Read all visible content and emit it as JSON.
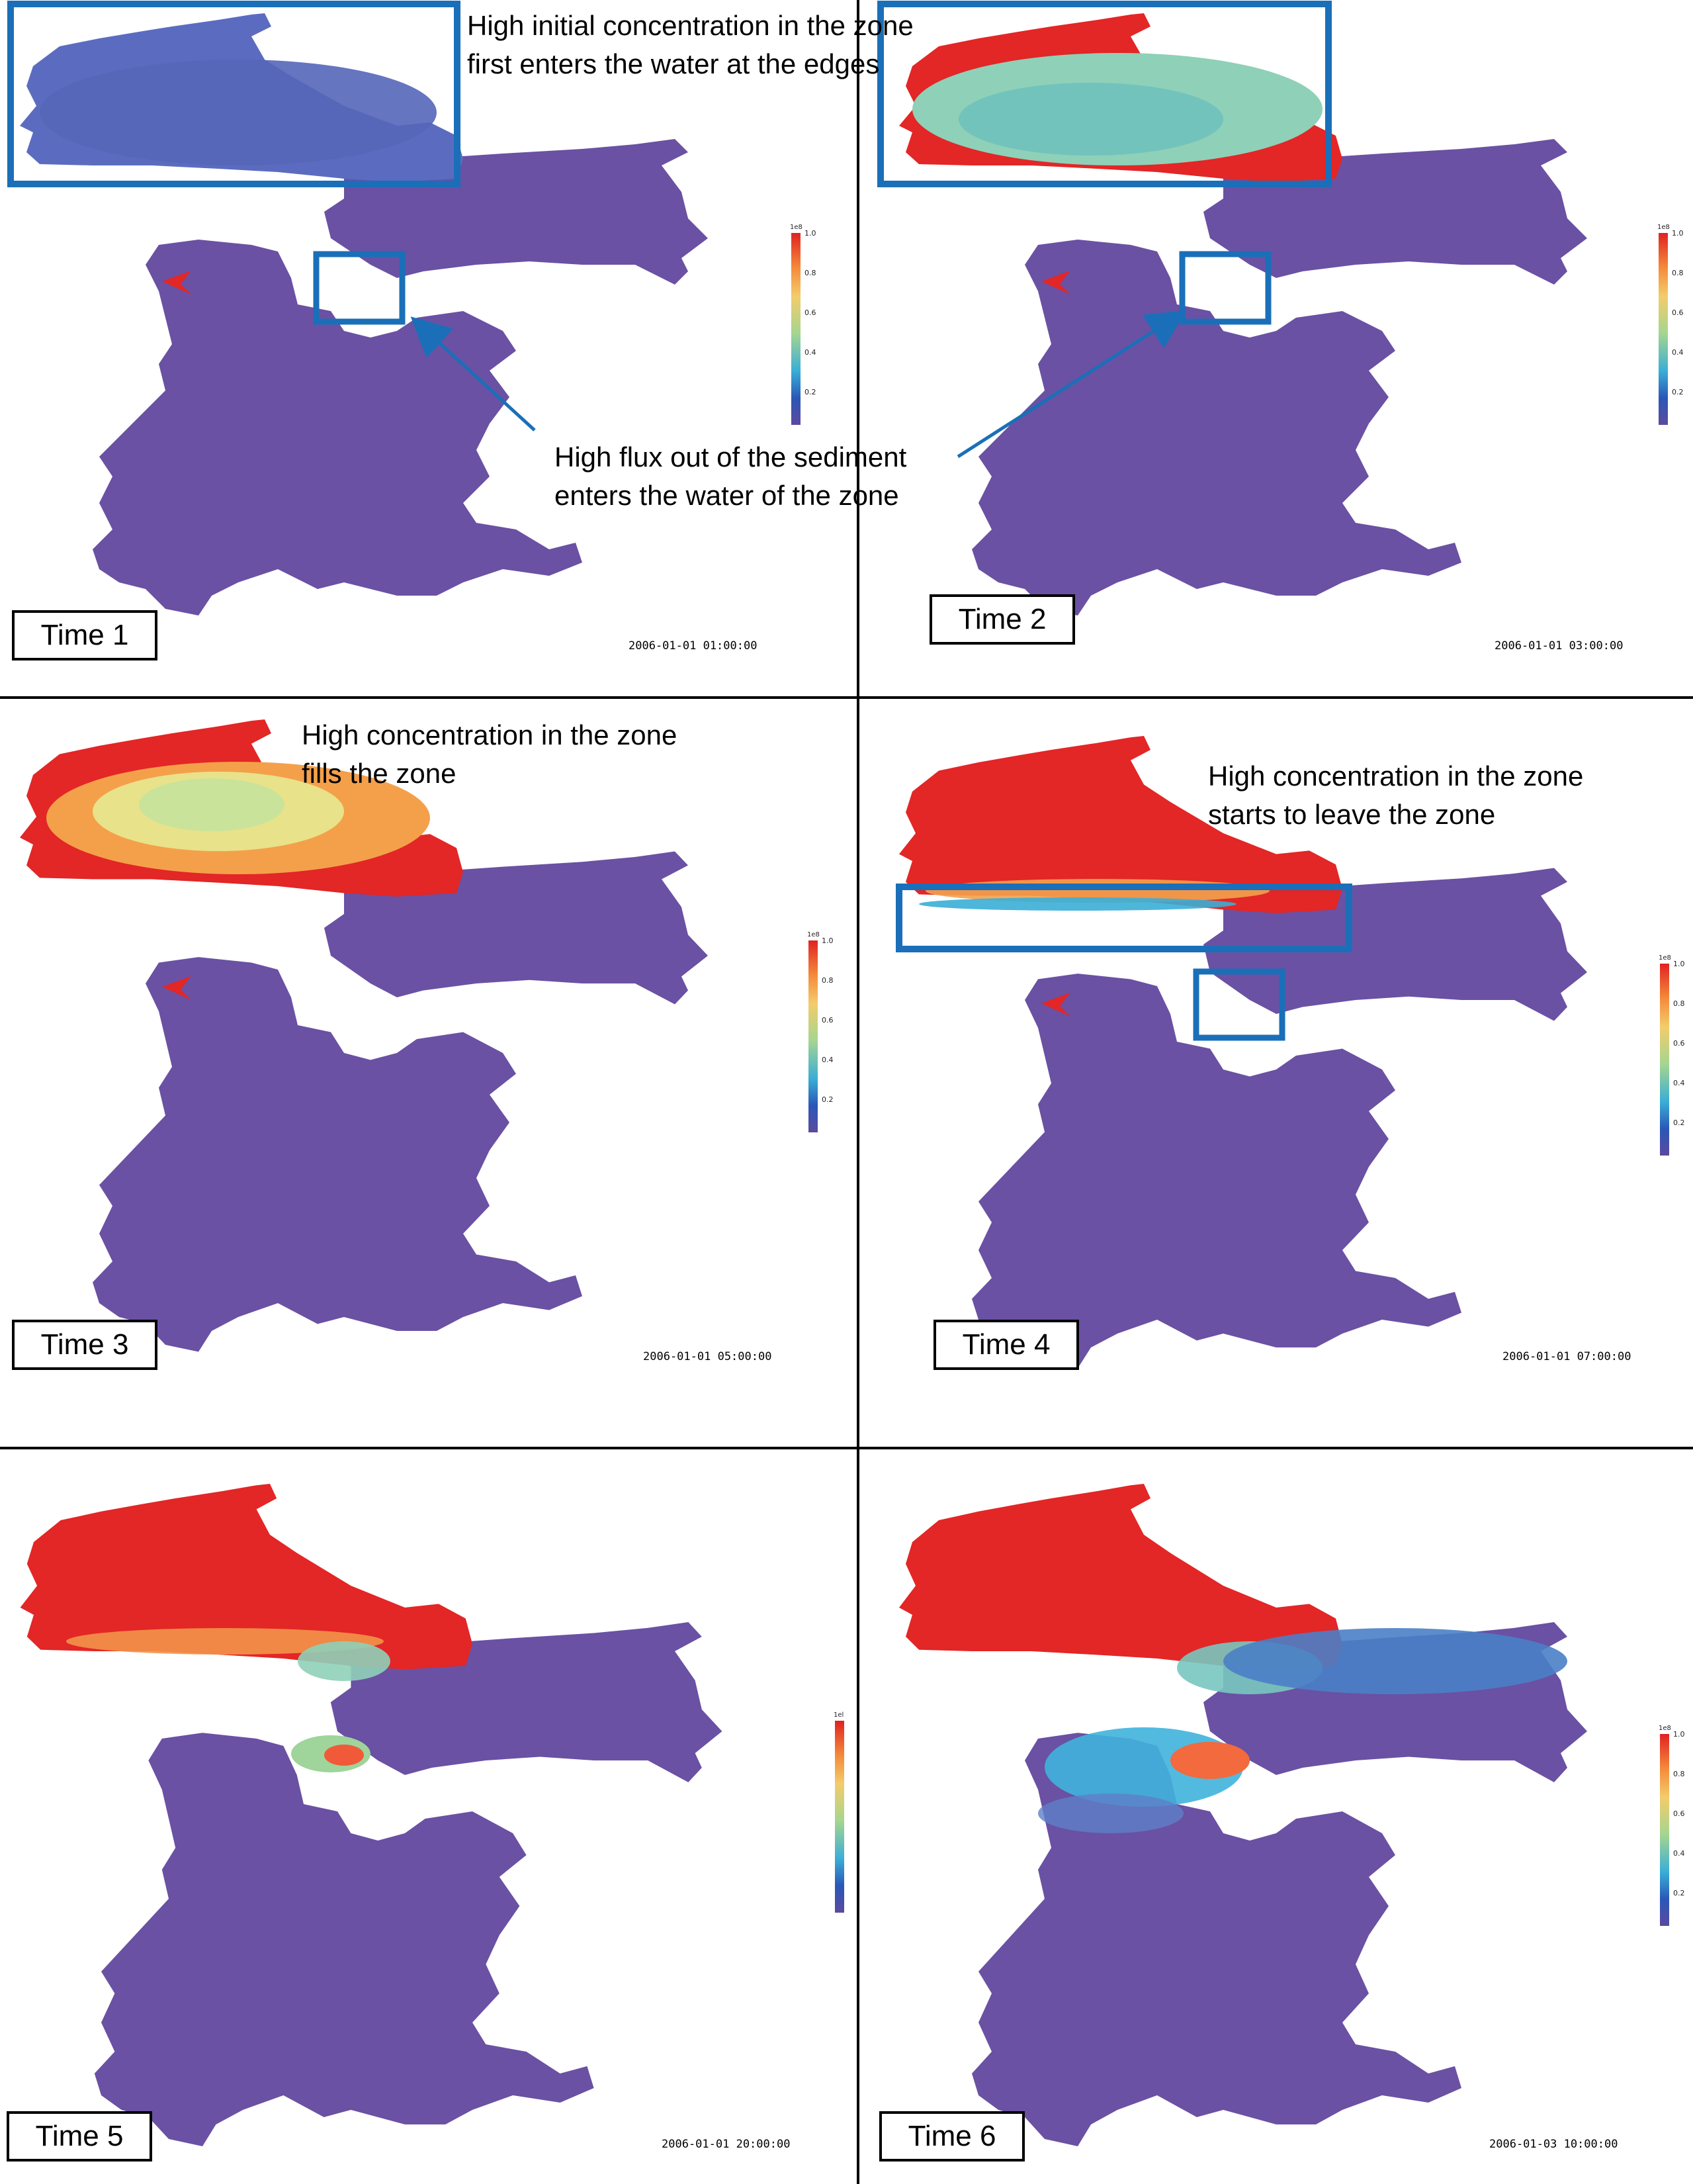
{
  "panels": [
    {
      "time_label": "Time 1",
      "timestamp": "2006-01-01 01:00:00",
      "colorbar_unit": "1e8"
    },
    {
      "time_label": "Time 2",
      "timestamp": "2006-01-01 03:00:00",
      "colorbar_unit": "1e8"
    },
    {
      "time_label": "Time 3",
      "timestamp": "2006-01-01 05:00:00",
      "colorbar_unit": "1e8"
    },
    {
      "time_label": "Time 4",
      "timestamp": "2006-01-01 07:00:00",
      "colorbar_unit": "1e8"
    },
    {
      "time_label": "Time 5",
      "timestamp": "2006-01-01 20:00:00",
      "colorbar_unit": "1el"
    },
    {
      "time_label": "Time 6",
      "timestamp": "2006-01-03 10:00:00",
      "colorbar_unit": "1e8"
    }
  ],
  "colorbar_ticks": [
    "1.0",
    "0.8",
    "0.6",
    "0.4",
    "0.2"
  ],
  "annotations": {
    "initial_concentration": {
      "line1": "High initial concentration in the zone",
      "line2": "first enters the water at the edges"
    },
    "sediment_flux": {
      "line1": "High flux out of the sediment",
      "line2": "enters the water of the zone"
    },
    "fills_zone": {
      "line1": "High concentration in the zone",
      "line2": "fills the zone"
    },
    "leaves_zone": {
      "line1": "High concentration in the zone",
      "line2": "starts to leave the zone"
    }
  },
  "colors": {
    "background_water_model": "#6a51a3",
    "high_concentration": "#e32626",
    "highlight_box": "#1a6fb8",
    "arrow": "#1a6fb8"
  }
}
